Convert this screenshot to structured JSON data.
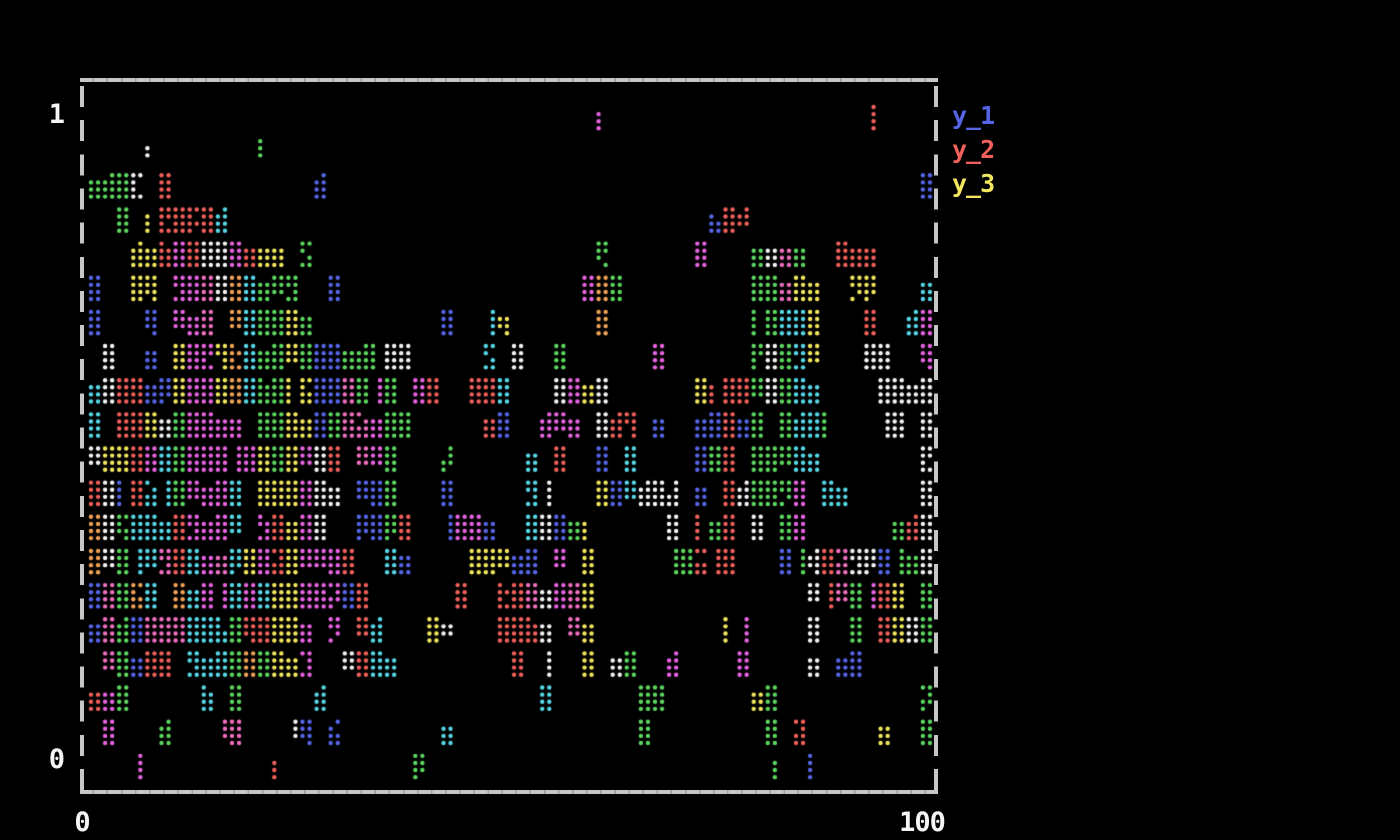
{
  "style": {
    "background": "#000000",
    "frame_color": "#c6c6c6",
    "frame_notch_color": "#9e9e9e",
    "tick_color": "#f5f5f5"
  },
  "chart_data": {
    "type": "scatter",
    "title": "",
    "xlabel": "",
    "ylabel": "",
    "xlim": [
      0,
      100
    ],
    "ylim": [
      0,
      1
    ],
    "x_ticks": [
      0,
      100
    ],
    "y_ticks": [
      0,
      1
    ],
    "x_tick_labels": [
      "0",
      "100"
    ],
    "y_tick_labels": [
      "0",
      "1"
    ],
    "grid": false,
    "legend_position": "outside-right-top",
    "series": [
      {
        "name": "y_1",
        "color": "#5565e6"
      },
      {
        "name": "y_2",
        "color": "#f0605c"
      },
      {
        "name": "y_3",
        "color": "#f2e65e"
      }
    ],
    "dot_field": {
      "description": "Braille-style terminal scatter: 60x20 character cells, each cell up to 2x4 dots, one color per cell; vertical color streaks; dense center rows, sparse top/bottom rows.",
      "seed": 77,
      "cols": 60,
      "rows": 20,
      "cell_w": 14.1,
      "cell_h": 34.15,
      "dot_pitch_x": 7.05,
      "dot_pitch_y": 7.1,
      "dot_radius": 2.2,
      "origin_x": 2.5,
      "origin_y": 21,
      "row_density": [
        0.13,
        0.2,
        0.3,
        0.4,
        0.47,
        0.52,
        0.58,
        0.68,
        0.78,
        0.74,
        0.75,
        0.78,
        0.8,
        0.74,
        0.7,
        0.66,
        0.5,
        0.38,
        0.26,
        0.12
      ],
      "palette": [
        {
          "color": "#5565e6",
          "weight": 0.16
        },
        {
          "color": "#f0605c",
          "weight": 0.15
        },
        {
          "color": "#f2e65e",
          "weight": 0.13
        },
        {
          "color": "#5cd660",
          "weight": 0.13
        },
        {
          "color": "#57d7e6",
          "weight": 0.12
        },
        {
          "color": "#e763e0",
          "weight": 0.11
        },
        {
          "color": "#f06fc0",
          "weight": 0.06
        },
        {
          "color": "#f4f4f4",
          "weight": 0.12
        },
        {
          "color": "#f0a256",
          "weight": 0.02
        }
      ],
      "voids": [
        {
          "rows": [
            12,
            15
          ],
          "cols": [
            36,
            40
          ],
          "factor": 0.04
        },
        {
          "rows": [
            4,
            6
          ],
          "cols": [
            39,
            41
          ],
          "factor": 0.08
        },
        {
          "rows": [
            0,
            5
          ],
          "cols": [
            25,
            33
          ],
          "factor": 0.5
        }
      ]
    }
  }
}
